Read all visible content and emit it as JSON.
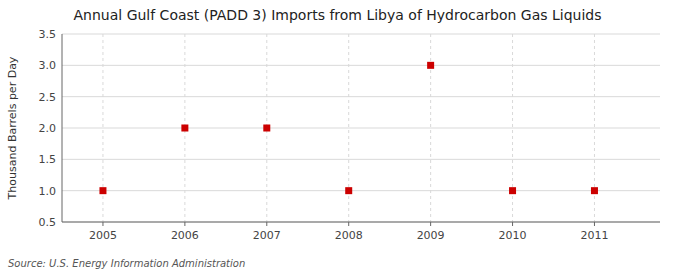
{
  "chart_data": {
    "type": "scatter",
    "title": "Annual Gulf Coast (PADD 3) Imports from Libya of Hydrocarbon Gas Liquids",
    "y_label": "Thousand Barrels per Day",
    "source": "Source: U.S. Energy Information Administration",
    "x": [
      2005,
      2006,
      2007,
      2008,
      2009,
      2010,
      2011
    ],
    "values": [
      1.0,
      2.0,
      2.0,
      1.0,
      3.0,
      1.0,
      1.0
    ],
    "color": "#cc0000",
    "marker": "square",
    "xlim": [
      2004.5,
      2011.8
    ],
    "ylim": [
      0.5,
      3.5
    ],
    "xticks": [
      2005,
      2006,
      2007,
      2008,
      2009,
      2010,
      2011
    ],
    "yticks": [
      0.5,
      {
        "value": 1.0,
        "label": "1.0"
      },
      1.5,
      {
        "value": 2.0,
        "label": "2.0"
      },
      2.5,
      {
        "value": 3.0,
        "label": "3.0"
      },
      3.5
    ],
    "grid": true
  }
}
